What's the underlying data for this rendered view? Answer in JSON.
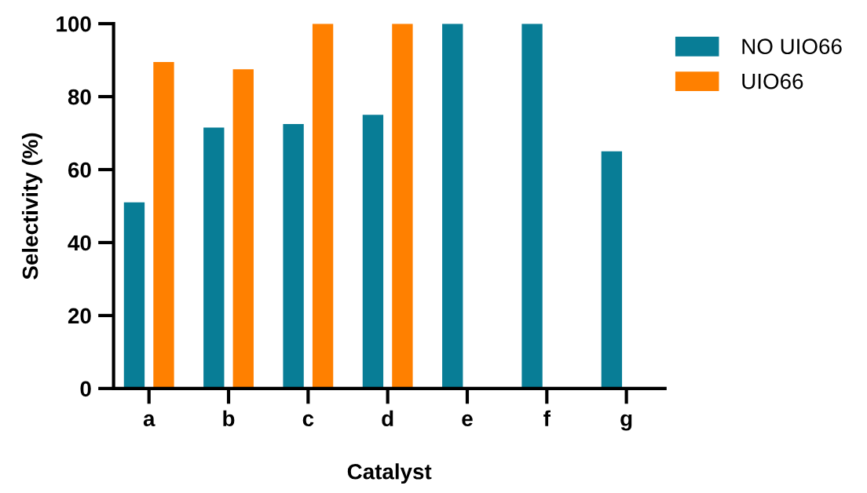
{
  "chart_data": {
    "type": "bar",
    "xlabel": "Catalyst",
    "ylabel": "Selectivity (%)",
    "categories": [
      "a",
      "b",
      "c",
      "d",
      "e",
      "f",
      "g"
    ],
    "series": [
      {
        "name": "NO UIO66",
        "color": "#087d96",
        "values": [
          51,
          71.5,
          72.5,
          75,
          100,
          100,
          65
        ]
      },
      {
        "name": "UIO66",
        "color": "#ff8000",
        "values": [
          89.5,
          87.5,
          100,
          100,
          null,
          null,
          null
        ]
      }
    ],
    "ylim": [
      0,
      100
    ],
    "yticks": [
      0,
      20,
      40,
      60,
      80,
      100
    ],
    "grid": false,
    "legend": "top right"
  }
}
